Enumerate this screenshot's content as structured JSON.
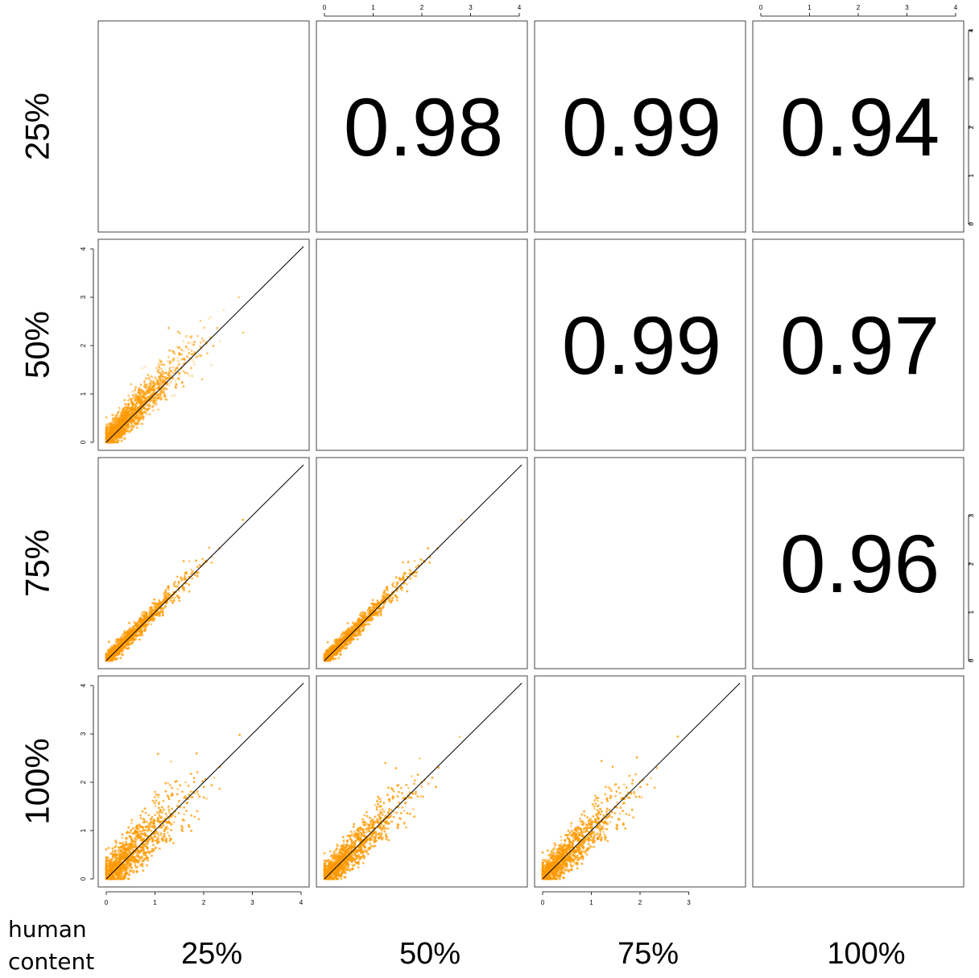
{
  "chart_data": {
    "type": "scatter-matrix",
    "variables": [
      "25%",
      "50%",
      "75%",
      "100%"
    ],
    "axis_title": [
      "human",
      "content"
    ],
    "ticks": [
      0,
      1,
      2,
      3,
      4
    ],
    "axis_range": [
      0,
      4
    ],
    "correlations": [
      {
        "row": 0,
        "col": 1,
        "label": "0.98"
      },
      {
        "row": 0,
        "col": 2,
        "label": "0.99"
      },
      {
        "row": 0,
        "col": 3,
        "label": "0.94"
      },
      {
        "row": 1,
        "col": 2,
        "label": "0.99"
      },
      {
        "row": 1,
        "col": 3,
        "label": "0.97"
      },
      {
        "row": 2,
        "col": 3,
        "label": "0.96"
      }
    ],
    "scatter_panels": [
      {
        "row": 1,
        "col": 0,
        "x": "25%",
        "y": "50%",
        "spread": 0.22,
        "tilt": 0.18
      },
      {
        "row": 2,
        "col": 0,
        "x": "25%",
        "y": "75%",
        "spread": 0.1,
        "tilt": 0.05
      },
      {
        "row": 2,
        "col": 1,
        "x": "50%",
        "y": "75%",
        "spread": 0.09,
        "tilt": 0.04
      },
      {
        "row": 3,
        "col": 0,
        "x": "25%",
        "y": "100%",
        "spread": 0.34,
        "tilt": 0.1
      },
      {
        "row": 3,
        "col": 1,
        "x": "50%",
        "y": "100%",
        "spread": 0.26,
        "tilt": 0.05
      },
      {
        "row": 3,
        "col": 2,
        "x": "75%",
        "y": "100%",
        "spread": 0.28,
        "tilt": 0.05
      }
    ],
    "identity_line": true,
    "point_color": "#ff9900",
    "line_color": "#000000",
    "grid": false
  }
}
